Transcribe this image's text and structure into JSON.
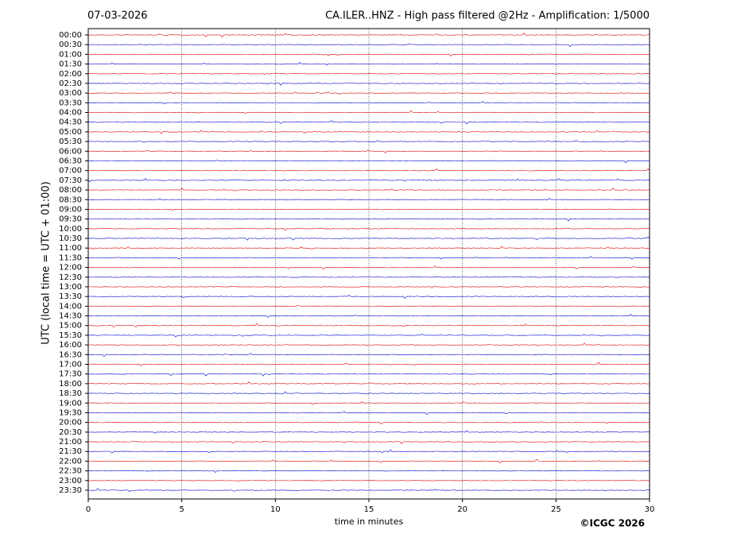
{
  "chart_data": {
    "type": "helicorder",
    "title_left": "07-03-2026",
    "title": "CA.ILER..HNZ - High pass filtered @2Hz - Amplification: 1/5000",
    "y_label": "UTC (local time = UTC + 01:00)",
    "x_label": "time in minutes",
    "credit": "©ICGC 2026",
    "categories": [
      "00:00",
      "00:30",
      "01:00",
      "01:30",
      "02:00",
      "02:30",
      "03:00",
      "03:30",
      "04:00",
      "04:30",
      "05:00",
      "05:30",
      "06:00",
      "06:30",
      "07:00",
      "07:30",
      "08:00",
      "08:30",
      "09:00",
      "09:30",
      "10:00",
      "10:30",
      "11:00",
      "11:30",
      "12:00",
      "12:30",
      "13:00",
      "13:30",
      "14:00",
      "14:30",
      "15:00",
      "15:30",
      "16:00",
      "16:30",
      "17:00",
      "17:30",
      "18:00",
      "18:30",
      "19:00",
      "19:30",
      "20:00",
      "20:30",
      "21:00",
      "21:30",
      "22:00",
      "22:30",
      "23:00",
      "23:30"
    ],
    "colors": [
      "#e00000",
      "#0000d0"
    ],
    "xlim": [
      0,
      30
    ],
    "xticks": [
      0,
      5,
      10,
      15,
      20,
      25,
      30
    ],
    "grid": true
  }
}
